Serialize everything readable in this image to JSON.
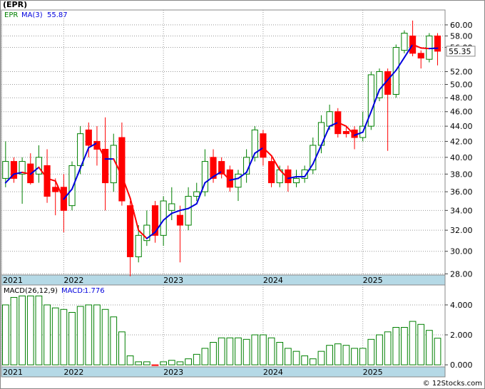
{
  "chart_data": [
    {
      "type": "candlestick",
      "title": "(EPR)",
      "ylog": true,
      "grid": true,
      "x": [
        0,
        1,
        2,
        3,
        4,
        5,
        6,
        7,
        8,
        9,
        10,
        11,
        12,
        13,
        14,
        15,
        16,
        17,
        18,
        19,
        20,
        21,
        22,
        23,
        24,
        25,
        26,
        27,
        28,
        29,
        30,
        31,
        32,
        33,
        34,
        35,
        36,
        37,
        38,
        39,
        40,
        41,
        42,
        43,
        44,
        45,
        46,
        47,
        48,
        49,
        50,
        51,
        52
      ],
      "xlim": [
        -0.5,
        52.9
      ],
      "xticks": [
        {
          "value": -0.5,
          "label": "2021"
        },
        {
          "value": 7,
          "label": "2022"
        },
        {
          "value": 19,
          "label": "2023"
        },
        {
          "value": 31,
          "label": "2024"
        },
        {
          "value": 43,
          "label": "2025"
        }
      ],
      "ylim": [
        27.9,
        62.8
      ],
      "yticks": [
        {
          "value": 28,
          "label": "28.00"
        },
        {
          "value": 30,
          "label": "30.00"
        },
        {
          "value": 32,
          "label": "32.00"
        },
        {
          "value": 34,
          "label": "34.00"
        },
        {
          "value": 36,
          "label": "36.00"
        },
        {
          "value": 38,
          "label": "38.00"
        },
        {
          "value": 40,
          "label": "40.00"
        },
        {
          "value": 42,
          "label": "42.00"
        },
        {
          "value": 44,
          "label": "44.00"
        },
        {
          "value": 46,
          "label": "46.00"
        },
        {
          "value": 48,
          "label": "48.00"
        },
        {
          "value": 50,
          "label": "50.00"
        },
        {
          "value": 52,
          "label": "52.00"
        },
        {
          "value": 56,
          "label": "56.00"
        },
        {
          "value": 58,
          "label": "58.00"
        },
        {
          "value": 60,
          "label": "60.00"
        }
      ],
      "series": [
        {
          "name": "EPR",
          "color": "#008000",
          "up_color": "#008000",
          "down_color": "#ff0000",
          "open": [
            37.5,
            39.5,
            38,
            39.2,
            38,
            39,
            36.5,
            36.5,
            34.5,
            39,
            43.5,
            42,
            41,
            37,
            42.5,
            34.5,
            29.5,
            31,
            34.5,
            31.5,
            34,
            33.5,
            32.5,
            35.5,
            36,
            40,
            39.5,
            38.5,
            36.5,
            38,
            40,
            43,
            39.5,
            37,
            38.5,
            37,
            37.5,
            38.5,
            41.5,
            44,
            46,
            43.3,
            43.5,
            42.5,
            44,
            48,
            52,
            48.5,
            55.5,
            58,
            55,
            54,
            58
          ],
          "high": [
            42,
            40,
            40,
            40.5,
            41.5,
            41,
            37.5,
            38,
            39.5,
            44,
            44.5,
            44,
            45.2,
            43,
            44.5,
            35,
            32.5,
            34,
            35,
            35.5,
            36.5,
            34.5,
            36.5,
            37,
            41,
            41,
            40,
            39,
            38.5,
            41,
            44,
            43.5,
            40,
            39,
            39,
            38.5,
            39,
            42.5,
            45.5,
            47,
            46.5,
            44,
            44,
            46,
            52,
            52.5,
            52.5,
            56.5,
            59,
            60.8,
            55.5,
            58.5,
            58.5
          ],
          "low": [
            36.5,
            37,
            34.7,
            36.8,
            37,
            34.8,
            33.5,
            31.8,
            34,
            38,
            40,
            39,
            34,
            36,
            34.5,
            27.8,
            29,
            30.5,
            30.8,
            30.5,
            33,
            29,
            32,
            35,
            35.5,
            37,
            37.5,
            36,
            35,
            37,
            39.5,
            39,
            36.5,
            36.5,
            36,
            36.5,
            37,
            38,
            40.5,
            43.5,
            42.5,
            42.5,
            41,
            42,
            43.5,
            47.5,
            40.8,
            48,
            55,
            54.5,
            52.5,
            53.5,
            53
          ],
          "close": [
            39.5,
            37.5,
            39.5,
            37,
            40,
            35.5,
            36,
            34,
            39,
            43,
            41.5,
            41,
            37,
            41.5,
            35,
            29.5,
            31.5,
            32.5,
            31.5,
            35,
            34.7,
            32.5,
            35.5,
            36,
            39.5,
            37.5,
            38,
            36.5,
            38,
            40,
            43.5,
            40,
            37,
            38.5,
            37,
            37.5,
            38.5,
            41.5,
            44.5,
            46,
            43,
            43,
            42.5,
            44,
            51.5,
            52,
            48.5,
            56,
            58.5,
            55,
            54.2,
            58,
            55.35
          ]
        },
        {
          "name": "MA(3)",
          "color": "#0000dd",
          "down_color": "#ff0000",
          "values": [
            37,
            38,
            38.2,
            38,
            38.8,
            37.5,
            37.2,
            35.2,
            36.3,
            38.7,
            41.2,
            41.8,
            39.8,
            39.8,
            37.8,
            35.3,
            32,
            31.2,
            31.8,
            33,
            33.7,
            34,
            34.2,
            34.7,
            37,
            37.7,
            38.3,
            37.3,
            37.5,
            38.2,
            40.5,
            41.2,
            40.2,
            38.5,
            37.5,
            37.7,
            37.7,
            39.2,
            41.5,
            44,
            44.5,
            44,
            42.8,
            43.2,
            46,
            49.2,
            50.7,
            52.2,
            54.3,
            56.5,
            55.9,
            55.8,
            55.87
          ]
        }
      ]
    },
    {
      "type": "bar",
      "title": "MACD(26,12,9)",
      "grid": true,
      "x": [
        0,
        1,
        2,
        3,
        4,
        5,
        6,
        7,
        8,
        9,
        10,
        11,
        12,
        13,
        14,
        15,
        16,
        17,
        18,
        19,
        20,
        21,
        22,
        23,
        24,
        25,
        26,
        27,
        28,
        29,
        30,
        31,
        32,
        33,
        34,
        35,
        36,
        37,
        38,
        39,
        40,
        41,
        42,
        43,
        44,
        45,
        46,
        47,
        48,
        49,
        50,
        51,
        52
      ],
      "xlim": [
        -0.5,
        52.9
      ],
      "xticks": [
        {
          "value": -0.5,
          "label": "2021"
        },
        {
          "value": 7,
          "label": "2022"
        },
        {
          "value": 19,
          "label": "2023"
        },
        {
          "value": 31,
          "label": "2024"
        },
        {
          "value": 43,
          "label": "2025"
        }
      ],
      "ylim": [
        -0.14,
        5.33
      ],
      "yticks": [
        {
          "value": 0,
          "label": "0.000"
        },
        {
          "value": 2,
          "label": "2.000"
        },
        {
          "value": 4,
          "label": "4.000"
        }
      ],
      "series": [
        {
          "name": "MACD:",
          "color": "#008000",
          "down_color": "#ff0000",
          "values": [
            4.0,
            4.5,
            4.6,
            4.6,
            4.6,
            4.0,
            3.8,
            3.7,
            3.5,
            3.9,
            4.0,
            4.0,
            3.7,
            3.2,
            2.2,
            0.6,
            0.2,
            0.2,
            -0.05,
            0.2,
            0.3,
            0.2,
            0.4,
            0.7,
            1.1,
            1.5,
            1.8,
            1.8,
            1.8,
            1.7,
            2.0,
            2.0,
            1.8,
            1.5,
            1.1,
            0.9,
            0.6,
            0.4,
            0.9,
            1.3,
            1.4,
            1.3,
            1.1,
            1.1,
            1.7,
            2.0,
            2.2,
            2.5,
            2.5,
            2.9,
            2.7,
            2.3,
            1.776
          ]
        }
      ]
    }
  ],
  "footer": "© 12Stocks.com"
}
